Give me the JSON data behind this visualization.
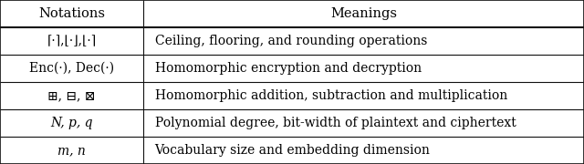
{
  "headers": [
    "Notations",
    "Meanings"
  ],
  "rows": [
    [
      "⌈·⌉,⌊·⌋,⌊·⌉",
      "Ceiling, flooring, and rounding operations"
    ],
    [
      "Enc(·), Dec(·)",
      "Homomorphic encryption and decryption"
    ],
    [
      "⊞, ⊟, ⊠",
      "Homomorphic addition, subtraction and multiplication"
    ],
    [
      "N, p, q",
      "Polynomial degree, bit-width of plaintext and ciphertext"
    ],
    [
      "m, n",
      "Vocabulary size and embedding dimension"
    ]
  ],
  "col_split": 0.245,
  "bg_color": "#ffffff",
  "border_color": "#111111",
  "header_fontsize": 10.5,
  "row_fontsize": 10.0,
  "italic_notation_rows": [
    3,
    4
  ],
  "fig_width": 6.4,
  "fig_height": 1.8
}
